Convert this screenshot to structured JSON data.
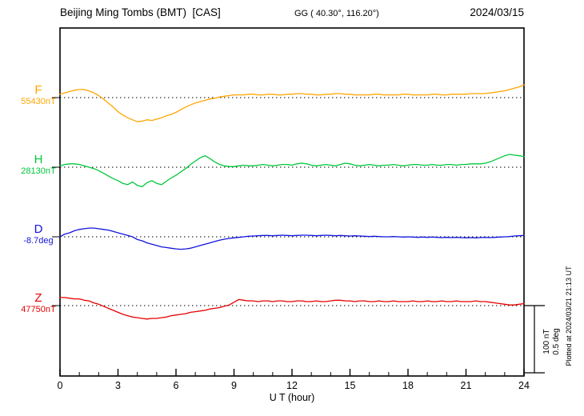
{
  "header": {
    "title": "Beijing Ming Tombs (BMT)  [CAS]",
    "coords": "GG ( 40.30°, 116.20°)",
    "date": "2024/03/15"
  },
  "x_axis": {
    "label": "U T (hour)",
    "ticks": [
      0,
      3,
      6,
      9,
      12,
      15,
      18,
      21,
      24
    ]
  },
  "scale_bar": {
    "line1": "100 nT",
    "line2": "0.5 deg"
  },
  "plot_note": "Plotted at 2024/03/21 21:13 UT",
  "chart_data": {
    "type": "line",
    "title": "Beijing Ming Tombs (BMT) [CAS] magnetogram for 2024/03/15",
    "x_unit": "UT hour",
    "x_start": 0,
    "x_step": 0.25,
    "x_range": [
      0,
      24
    ],
    "grid": "dotted baselines per trace",
    "legend_position": "left of each trace",
    "scale_per_division": {
      "nT": 100,
      "deg": 0.5
    },
    "series": [
      {
        "name": "F",
        "unit": "nT",
        "baseline_label": "55430nT",
        "baseline_value": 55430,
        "color": "#ffa500",
        "offsets_from_baseline": [
          5,
          7,
          9,
          11,
          12,
          12,
          10,
          7,
          3,
          -2,
          -8,
          -14,
          -21,
          -26,
          -30,
          -33,
          -36,
          -35,
          -33,
          -34,
          -32,
          -30,
          -27,
          -25,
          -22,
          -18,
          -14,
          -11,
          -8,
          -6,
          -4,
          -2,
          -1,
          1,
          2,
          3,
          4,
          4,
          4,
          5,
          5,
          4,
          4,
          5,
          5,
          4,
          4,
          5,
          5,
          6,
          6,
          5,
          5,
          4,
          4,
          5,
          5,
          6,
          6,
          5,
          5,
          4,
          4,
          4,
          4,
          5,
          5,
          4,
          4,
          4,
          4,
          5,
          5,
          4,
          4,
          4,
          4,
          5,
          5,
          4,
          4,
          5,
          5,
          5,
          5,
          6,
          6,
          6,
          6,
          7,
          8,
          9,
          10,
          12,
          14,
          16,
          19
        ]
      },
      {
        "name": "H",
        "unit": "nT",
        "baseline_label": "28130nT",
        "baseline_value": 28130,
        "color": "#00c83c",
        "offsets_from_baseline": [
          2,
          4,
          5,
          5,
          4,
          2,
          0,
          -2,
          -5,
          -9,
          -13,
          -17,
          -20,
          -24,
          -26,
          -22,
          -27,
          -29,
          -23,
          -20,
          -24,
          -26,
          -21,
          -16,
          -12,
          -7,
          -2,
          4,
          9,
          14,
          17,
          13,
          8,
          4,
          2,
          1,
          1,
          2,
          3,
          2,
          2,
          3,
          4,
          3,
          2,
          3,
          4,
          4,
          3,
          5,
          6,
          5,
          3,
          2,
          3,
          4,
          3,
          2,
          4,
          6,
          5,
          3,
          2,
          3,
          4,
          3,
          2,
          3,
          3,
          4,
          3,
          2,
          3,
          4,
          4,
          3,
          3,
          4,
          3,
          3,
          4,
          4,
          3,
          4,
          4,
          5,
          5,
          5,
          6,
          8,
          11,
          14,
          17,
          19,
          18,
          17,
          16
        ]
      },
      {
        "name": "D",
        "unit": "deg",
        "baseline_label": "-8.7deg",
        "baseline_value": -8.7,
        "color": "#1414dc",
        "offsets_from_baseline": [
          0,
          0.02,
          0.03,
          0.045,
          0.055,
          0.06,
          0.065,
          0.065,
          0.06,
          0.055,
          0.05,
          0.04,
          0.03,
          0.02,
          0.01,
          0,
          -0.02,
          -0.03,
          -0.045,
          -0.055,
          -0.065,
          -0.075,
          -0.08,
          -0.085,
          -0.09,
          -0.093,
          -0.09,
          -0.085,
          -0.075,
          -0.065,
          -0.055,
          -0.045,
          -0.035,
          -0.025,
          -0.018,
          -0.012,
          -0.008,
          -0.004,
          0,
          0.004,
          0.006,
          0.008,
          0.01,
          0.01,
          0.008,
          0.01,
          0.012,
          0.01,
          0.008,
          0.01,
          0.012,
          0.012,
          0.01,
          0.008,
          0.01,
          0.012,
          0.01,
          0.008,
          0.01,
          0.008,
          0.006,
          0.008,
          0.006,
          0.004,
          0.002,
          0.004,
          0.002,
          0,
          0,
          0.002,
          0,
          -0.002,
          0,
          -0.002,
          -0.004,
          -0.002,
          -0.004,
          -0.002,
          -0.004,
          -0.006,
          -0.004,
          -0.006,
          -0.004,
          -0.006,
          -0.008,
          -0.006,
          -0.008,
          -0.006,
          -0.004,
          -0.006,
          -0.004,
          -0.002,
          0,
          0.002,
          0.006,
          0.008,
          0.01
        ]
      },
      {
        "name": "Z",
        "unit": "nT",
        "baseline_label": "47750nT",
        "baseline_value": 47750,
        "color": "#e60000",
        "offsets_from_baseline": [
          12,
          12,
          11,
          10,
          10,
          8,
          7,
          4,
          2,
          -1,
          -4,
          -7,
          -10,
          -13,
          -15,
          -17,
          -18,
          -19,
          -20,
          -19,
          -19,
          -18,
          -17,
          -15,
          -14,
          -13,
          -12,
          -10,
          -9,
          -8,
          -7,
          -5,
          -4,
          -3,
          -1,
          1,
          5,
          9,
          8,
          7,
          7,
          6,
          7,
          7,
          6,
          7,
          7,
          6,
          6,
          7,
          7,
          6,
          6,
          7,
          6,
          6,
          7,
          8,
          8,
          7,
          7,
          6,
          7,
          7,
          6,
          6,
          7,
          6,
          6,
          7,
          6,
          6,
          6,
          7,
          6,
          6,
          7,
          6,
          6,
          7,
          6,
          6,
          7,
          6,
          6,
          6,
          7,
          6,
          6,
          5,
          4,
          3,
          2,
          1,
          1,
          2,
          3
        ]
      }
    ]
  }
}
